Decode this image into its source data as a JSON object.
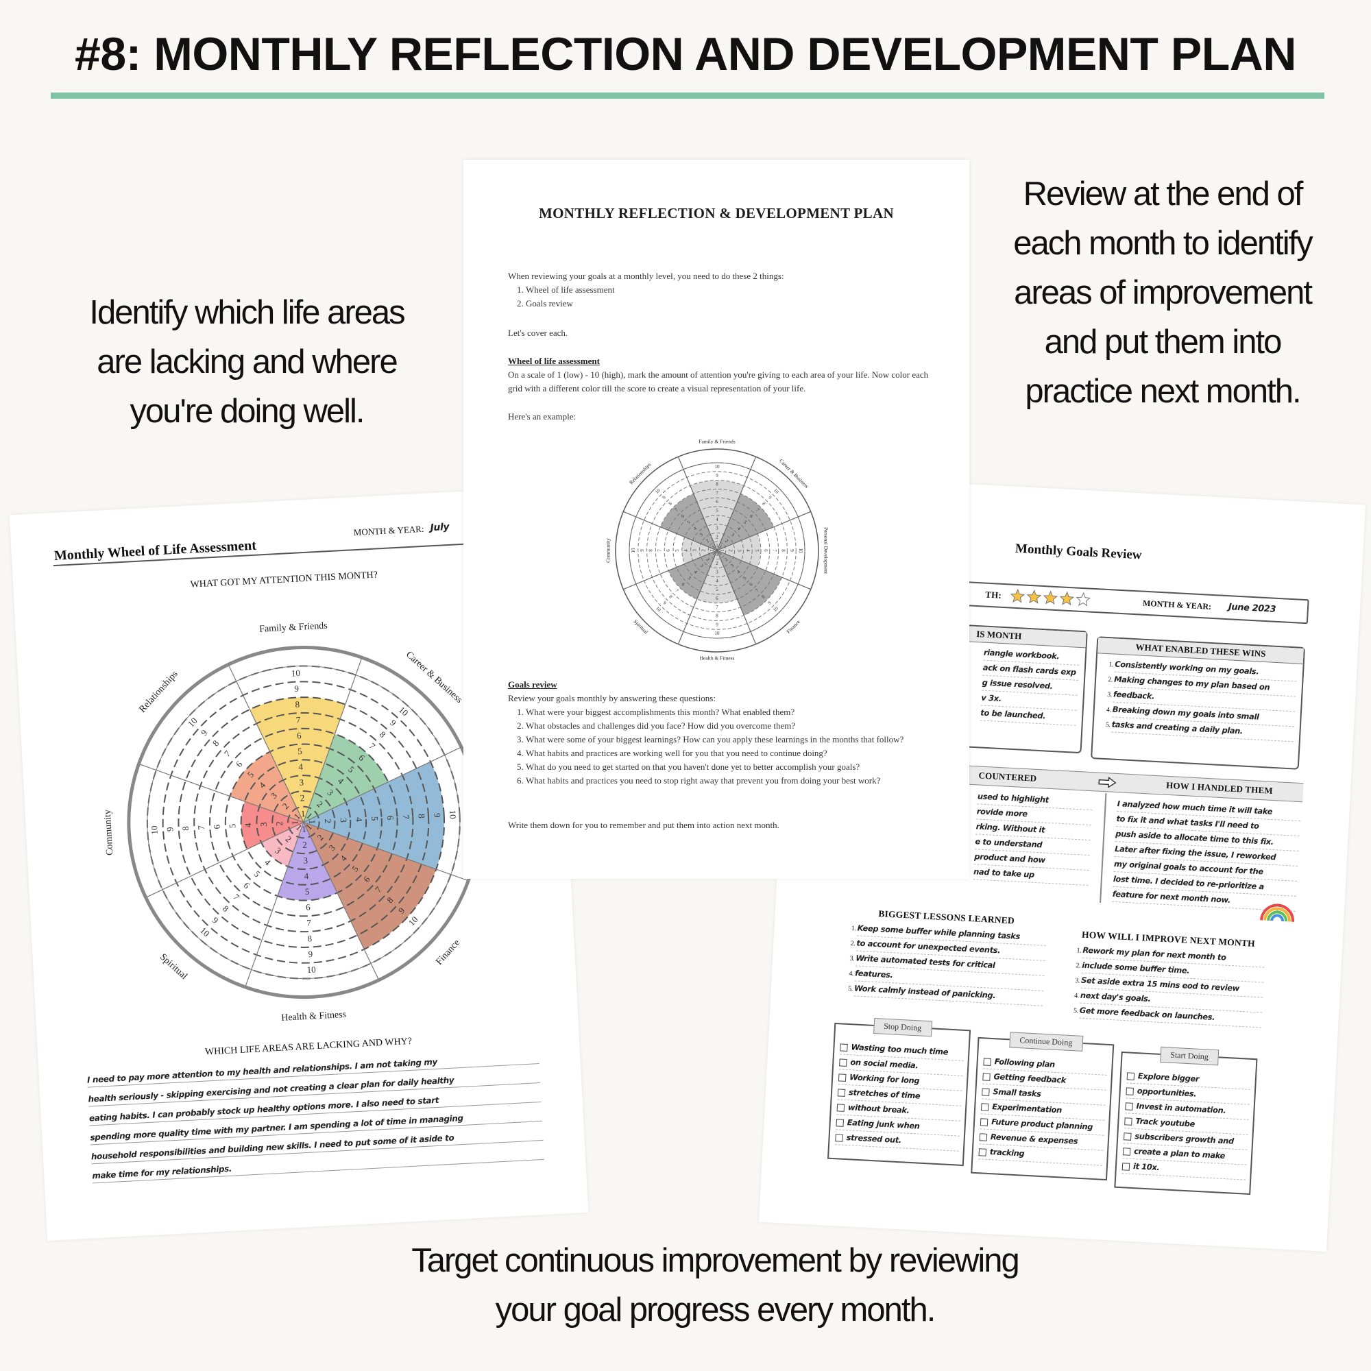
{
  "header": {
    "title": "#8: MONTHLY REFLECTION AND DEVELOPMENT PLAN"
  },
  "captions": {
    "left": [
      "Identify which life areas",
      "are lacking and where",
      "you're doing well."
    ],
    "right": [
      "Review at the end of",
      "each month to identify",
      "areas of improvement",
      "and put them into",
      "practice next month."
    ],
    "bottom": [
      "Target continuous improvement by reviewing",
      "your goal progress every month."
    ]
  },
  "center_page": {
    "title": "MONTHLY REFLECTION & DEVELOPMENT PLAN",
    "intro": "When reviewing your goals at a monthly level, you need to do these 2 things:",
    "steps": [
      "Wheel of life assessment",
      "Goals review"
    ],
    "lets_cover": "Let's cover each.",
    "wheel_heading": "Wheel of life assessment",
    "wheel_text": "On a scale of 1 (low) - 10 (high), mark the amount of attention you're giving to each area of your life. Now color each grid with a different color till the score to create a visual representation of your life.",
    "example": "Here's an example:",
    "wheel": {
      "areas": [
        "Family & Friends",
        "Career & Business",
        "Personal Development",
        "Finance",
        "Health & Fitness",
        "Spiritual",
        "Community",
        "Relationships"
      ],
      "scores": [
        8,
        7,
        5,
        8,
        6,
        6,
        4,
        7
      ],
      "colors": [
        "#d9d9d9",
        "#a8a8a8",
        "#d9d9d9",
        "#a8a8a8",
        "#d9d9d9",
        "#a8a8a8",
        "#d9d9d9",
        "#a8a8a8"
      ],
      "scale": [
        1,
        2,
        3,
        4,
        5,
        6,
        7,
        8,
        9,
        10
      ]
    },
    "goals_heading": "Goals review",
    "goals_intro": "Review your goals monthly by answering these questions:",
    "questions": [
      "What were your biggest accomplishments this month? What enabled them?",
      "What obstacles and challenges did you face? How did you overcome them?",
      "What were some of your biggest learnings? How can you apply these learnings in the months that follow?",
      "What habits and practices are working well for you that you need to continue doing?",
      "What do you need to get started on that you haven't done yet to better accomplish your goals?",
      "What habits and practices you need to stop right away that prevent you from doing your best work?"
    ],
    "closing": "Write them down for you to remember and put them into action next month."
  },
  "left_page": {
    "title": "Monthly Wheel of Life Assessment",
    "month_label": "MONTH & YEAR:",
    "month_value": "July",
    "wheel_heading": "WHAT GOT MY ATTENTION THIS MONTH?",
    "wheel": {
      "areas": [
        "Family & Friends",
        "Career & Business",
        null,
        "Finance",
        "Health & Fitness",
        "Spiritual",
        "Community",
        "Relationships"
      ],
      "scores": [
        8,
        6,
        9,
        9,
        5,
        3,
        4,
        5
      ],
      "colors": [
        "#f7d97c",
        "#9fd0ae",
        "#93bad6",
        "#cf937d",
        "#b9a7ea",
        "#f8b8c4",
        "#f68c8c",
        "#f2a78a"
      ],
      "scale": [
        1,
        2,
        3,
        4,
        5,
        6,
        7,
        8,
        9,
        10
      ]
    },
    "lacking_heading": "WHICH LIFE AREAS ARE LACKING AND WHY?",
    "lacking_text": [
      "I need to pay more attention to my health and relationships. I am not taking my",
      "health seriously - skipping exercising and not creating a clear plan for daily healthy",
      "eating habits. I can probably stock up healthy options more. I also need to start",
      "spending more quality time with my partner. I am spending a lot of time in managing",
      "household responsibilities and building new skills. I need to put some of it aside to",
      "make time for my relationships."
    ]
  },
  "right_page": {
    "title": "Monthly Goals Review",
    "rating_label": "TH:",
    "rating": 4,
    "rating_max": 5,
    "month_label": "MONTH & YEAR:",
    "month_value": "June 2023",
    "wins_heading": "IS MONTH",
    "wins": [
      "riangle workbook.",
      "ack on flash cards exp",
      "g issue resolved.",
      "v 3x.",
      "to be launched."
    ],
    "enablers_heading": "WHAT ENABLED THESE WINS",
    "enablers": [
      "Consistently working on my goals.",
      "Making changes to my plan based on",
      "feedback.",
      "Breaking down my goals into small",
      "tasks and creating a daily plan."
    ],
    "obstacles_heading": "COUNTERED",
    "handled_heading": "HOW I HANDLED THEM",
    "obstacles": [
      "used to highlight",
      "rovide more",
      "rking. Without it",
      "e to understand",
      "product and how",
      "nad to take up"
    ],
    "handled": [
      "I analyzed how much time it will take",
      "to fix it and what tasks I'll need to",
      "push aside to allocate time to this fix.",
      "Later after fixing the issue, I reworked",
      "my original goals to account for the",
      "lost time. I decided to re-prioritize a",
      "feature for next month now."
    ],
    "lessons_heading": "BIGGEST LESSONS LEARNED",
    "lessons": [
      "Keep some buffer while planning tasks",
      "to account for unexpected events.",
      "Write automated tests for critical",
      "features.",
      "Work calmly instead of panicking."
    ],
    "improve_heading": "HOW WILL I IMPROVE NEXT MONTH",
    "improve": [
      "Rework my plan for next month to",
      "include some buffer time.",
      "Set aside extra 15 mins eod to review",
      "next day's goals.",
      "Get more feedback on launches."
    ],
    "stop": {
      "heading": "Stop Doing",
      "items": [
        "Wasting too much time",
        "on social media.",
        "Working for long",
        "stretches of time",
        "without break.",
        "Eating junk when",
        "stressed out."
      ]
    },
    "continue": {
      "heading": "Continue Doing",
      "items": [
        "Following plan",
        "Getting feedback",
        "Small tasks",
        "Experimentation",
        "Future product planning",
        "Revenue & expenses",
        "tracking"
      ]
    },
    "start": {
      "heading": "Start Doing",
      "items": [
        "Explore bigger",
        "opportunities.",
        "Invest in automation.",
        "Track youtube",
        "subscribers growth and",
        "create a plan to make",
        "it 10x."
      ]
    }
  }
}
